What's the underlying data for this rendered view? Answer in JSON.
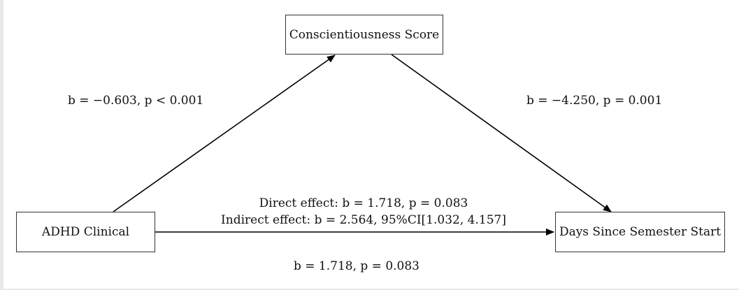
{
  "nodes": {
    "mediator": "Conscientiousness Score",
    "x": "ADHD Clinical",
    "y": "Days Since Semester Start"
  },
  "paths": {
    "a": "b = −0.603, p < 0.001",
    "b": "b = −4.250, p = 0.001",
    "direct": "Direct effect: b = 1.718, p = 0.083",
    "indirect": "Indirect effect: b = 2.564, 95%CI[1.032, 4.157]",
    "c": "b = 1.718, p = 0.083"
  }
}
